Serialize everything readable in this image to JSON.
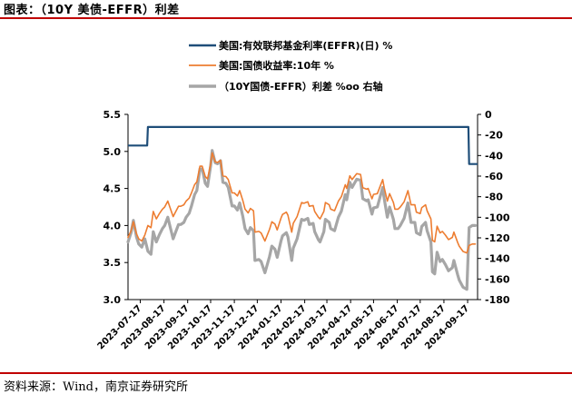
{
  "page": {
    "title": "图表：（10Y 美债-EFFR）利差",
    "source": "资料来源：Wind，南京证券研究所"
  },
  "colors": {
    "effr": "#1f4e79",
    "yield10y": "#ed7d31",
    "spread": "#a6a6a6",
    "rule": "#c00000"
  },
  "chart_data": {
    "type": "line",
    "legend_position": "top-center",
    "grid": false,
    "legend": [
      {
        "key": "effr",
        "label": "美国:有效联邦基金利率(EFFR)(日) %"
      },
      {
        "key": "yield10y",
        "label": "美国:国债收益率:10年 %"
      },
      {
        "key": "spread",
        "label": "（10Y国债-EFFR）利差 %oo 右轴"
      }
    ],
    "x_range": [
      "2023-07-01",
      "2024-09-30"
    ],
    "x_ticks": [
      "2023-07-17",
      "2023-08-17",
      "2023-09-17",
      "2023-10-17",
      "2023-11-17",
      "2023-12-17",
      "2024-01-17",
      "2024-02-17",
      "2024-03-17",
      "2024-04-17",
      "2024-05-17",
      "2024-06-17",
      "2024-07-17",
      "2024-08-17",
      "2024-09-17"
    ],
    "y_left": {
      "min": 3.0,
      "max": 5.5,
      "ticks": [
        "3.0",
        "3.5",
        "4.0",
        "4.5",
        "5.0",
        "5.5"
      ]
    },
    "y_right": {
      "min": -180,
      "max": 0,
      "ticks": [
        "0",
        "-20",
        "-40",
        "-60",
        "-80",
        "-100",
        "-120",
        "-140",
        "-160",
        "-180"
      ]
    },
    "series": [
      {
        "key": "effr",
        "axis": "left",
        "points": [
          [
            "2023-07-01",
            5.08
          ],
          [
            "2023-07-26",
            5.08
          ],
          [
            "2023-07-27",
            5.33
          ],
          [
            "2024-09-18",
            5.33
          ],
          [
            "2024-09-19",
            4.83
          ],
          [
            "2024-09-30",
            4.83
          ]
        ]
      },
      {
        "key": "yield10y",
        "axis": "left",
        "points": [
          [
            "2023-07-01",
            3.84
          ],
          [
            "2023-07-05",
            3.93
          ],
          [
            "2023-07-08",
            4.05
          ],
          [
            "2023-07-12",
            3.89
          ],
          [
            "2023-07-15",
            3.82
          ],
          [
            "2023-07-19",
            3.79
          ],
          [
            "2023-07-23",
            3.87
          ],
          [
            "2023-07-27",
            4.0
          ],
          [
            "2023-07-31",
            3.97
          ],
          [
            "2023-08-03",
            4.19
          ],
          [
            "2023-08-07",
            4.09
          ],
          [
            "2023-08-11",
            4.16
          ],
          [
            "2023-08-15",
            4.22
          ],
          [
            "2023-08-18",
            4.25
          ],
          [
            "2023-08-22",
            4.33
          ],
          [
            "2023-08-25",
            4.24
          ],
          [
            "2023-08-29",
            4.12
          ],
          [
            "2023-09-01",
            4.18
          ],
          [
            "2023-09-05",
            4.26
          ],
          [
            "2023-09-08",
            4.26
          ],
          [
            "2023-09-12",
            4.28
          ],
          [
            "2023-09-15",
            4.33
          ],
          [
            "2023-09-19",
            4.37
          ],
          [
            "2023-09-22",
            4.44
          ],
          [
            "2023-09-26",
            4.55
          ],
          [
            "2023-09-29",
            4.59
          ],
          [
            "2023-10-03",
            4.8
          ],
          [
            "2023-10-06",
            4.8
          ],
          [
            "2023-10-10",
            4.66
          ],
          [
            "2023-10-13",
            4.63
          ],
          [
            "2023-10-17",
            4.83
          ],
          [
            "2023-10-19",
            4.98
          ],
          [
            "2023-10-23",
            4.86
          ],
          [
            "2023-10-26",
            4.85
          ],
          [
            "2023-10-30",
            4.88
          ],
          [
            "2023-11-02",
            4.67
          ],
          [
            "2023-11-06",
            4.66
          ],
          [
            "2023-11-09",
            4.62
          ],
          [
            "2023-11-14",
            4.44
          ],
          [
            "2023-11-17",
            4.44
          ],
          [
            "2023-11-21",
            4.4
          ],
          [
            "2023-11-24",
            4.47
          ],
          [
            "2023-11-28",
            4.34
          ],
          [
            "2023-12-01",
            4.22
          ],
          [
            "2023-12-05",
            4.17
          ],
          [
            "2023-12-08",
            4.23
          ],
          [
            "2023-12-12",
            4.2
          ],
          [
            "2023-12-14",
            3.91
          ],
          [
            "2023-12-19",
            3.92
          ],
          [
            "2023-12-22",
            3.9
          ],
          [
            "2023-12-27",
            3.79
          ],
          [
            "2024-01-02",
            3.95
          ],
          [
            "2024-01-05",
            4.05
          ],
          [
            "2024-01-09",
            4.02
          ],
          [
            "2024-01-12",
            3.94
          ],
          [
            "2024-01-17",
            4.1
          ],
          [
            "2024-01-19",
            4.15
          ],
          [
            "2024-01-24",
            4.18
          ],
          [
            "2024-01-26",
            4.14
          ],
          [
            "2024-01-31",
            3.91
          ],
          [
            "2024-02-02",
            4.03
          ],
          [
            "2024-02-07",
            4.12
          ],
          [
            "2024-02-13",
            4.31
          ],
          [
            "2024-02-16",
            4.3
          ],
          [
            "2024-02-21",
            4.32
          ],
          [
            "2024-02-23",
            4.26
          ],
          [
            "2024-02-28",
            4.27
          ],
          [
            "2024-03-01",
            4.19
          ],
          [
            "2024-03-06",
            4.11
          ],
          [
            "2024-03-08",
            4.09
          ],
          [
            "2024-03-13",
            4.19
          ],
          [
            "2024-03-15",
            4.31
          ],
          [
            "2024-03-20",
            4.28
          ],
          [
            "2024-03-22",
            4.22
          ],
          [
            "2024-03-27",
            4.2
          ],
          [
            "2024-04-01",
            4.33
          ],
          [
            "2024-04-05",
            4.39
          ],
          [
            "2024-04-10",
            4.55
          ],
          [
            "2024-04-12",
            4.5
          ],
          [
            "2024-04-16",
            4.67
          ],
          [
            "2024-04-19",
            4.62
          ],
          [
            "2024-04-25",
            4.7
          ],
          [
            "2024-04-30",
            4.69
          ],
          [
            "2024-05-03",
            4.51
          ],
          [
            "2024-05-08",
            4.49
          ],
          [
            "2024-05-10",
            4.5
          ],
          [
            "2024-05-15",
            4.36
          ],
          [
            "2024-05-17",
            4.42
          ],
          [
            "2024-05-22",
            4.43
          ],
          [
            "2024-05-29",
            4.62
          ],
          [
            "2024-05-31",
            4.51
          ],
          [
            "2024-06-04",
            4.33
          ],
          [
            "2024-06-07",
            4.43
          ],
          [
            "2024-06-12",
            4.31
          ],
          [
            "2024-06-14",
            4.22
          ],
          [
            "2024-06-18",
            4.22
          ],
          [
            "2024-06-21",
            4.25
          ],
          [
            "2024-06-26",
            4.32
          ],
          [
            "2024-07-01",
            4.47
          ],
          [
            "2024-07-05",
            4.28
          ],
          [
            "2024-07-10",
            4.28
          ],
          [
            "2024-07-12",
            4.18
          ],
          [
            "2024-07-17",
            4.16
          ],
          [
            "2024-07-19",
            4.24
          ],
          [
            "2024-07-24",
            4.28
          ],
          [
            "2024-07-26",
            4.2
          ],
          [
            "2024-07-31",
            4.09
          ],
          [
            "2024-08-02",
            3.8
          ],
          [
            "2024-08-05",
            3.78
          ],
          [
            "2024-08-08",
            3.99
          ],
          [
            "2024-08-12",
            3.9
          ],
          [
            "2024-08-15",
            3.92
          ],
          [
            "2024-08-19",
            3.87
          ],
          [
            "2024-08-23",
            3.81
          ],
          [
            "2024-08-28",
            3.84
          ],
          [
            "2024-08-30",
            3.91
          ],
          [
            "2024-09-04",
            3.77
          ],
          [
            "2024-09-06",
            3.72
          ],
          [
            "2024-09-11",
            3.65
          ],
          [
            "2024-09-16",
            3.63
          ],
          [
            "2024-09-19",
            3.73
          ],
          [
            "2024-09-23",
            3.75
          ],
          [
            "2024-09-27",
            3.75
          ]
        ]
      },
      {
        "key": "spread",
        "axis": "right",
        "points": [
          [
            "2023-07-01",
            -124
          ],
          [
            "2023-07-05",
            -115
          ],
          [
            "2023-07-08",
            -103
          ],
          [
            "2023-07-12",
            -119
          ],
          [
            "2023-07-15",
            -126
          ],
          [
            "2023-07-19",
            -129
          ],
          [
            "2023-07-23",
            -121
          ],
          [
            "2023-07-27",
            -133
          ],
          [
            "2023-07-31",
            -136
          ],
          [
            "2023-08-03",
            -114
          ],
          [
            "2023-08-07",
            -124
          ],
          [
            "2023-08-11",
            -117
          ],
          [
            "2023-08-15",
            -111
          ],
          [
            "2023-08-18",
            -108
          ],
          [
            "2023-08-22",
            -100
          ],
          [
            "2023-08-25",
            -109
          ],
          [
            "2023-08-29",
            -121
          ],
          [
            "2023-09-01",
            -115
          ],
          [
            "2023-09-05",
            -107
          ],
          [
            "2023-09-08",
            -107
          ],
          [
            "2023-09-12",
            -105
          ],
          [
            "2023-09-15",
            -100
          ],
          [
            "2023-09-19",
            -96
          ],
          [
            "2023-09-22",
            -89
          ],
          [
            "2023-09-26",
            -78
          ],
          [
            "2023-09-29",
            -74
          ],
          [
            "2023-10-03",
            -53
          ],
          [
            "2023-10-06",
            -53
          ],
          [
            "2023-10-10",
            -67
          ],
          [
            "2023-10-13",
            -70
          ],
          [
            "2023-10-17",
            -50
          ],
          [
            "2023-10-19",
            -35
          ],
          [
            "2023-10-23",
            -47
          ],
          [
            "2023-10-26",
            -48
          ],
          [
            "2023-10-30",
            -45
          ],
          [
            "2023-11-02",
            -66
          ],
          [
            "2023-11-06",
            -67
          ],
          [
            "2023-11-09",
            -71
          ],
          [
            "2023-11-14",
            -89
          ],
          [
            "2023-11-17",
            -89
          ],
          [
            "2023-11-21",
            -93
          ],
          [
            "2023-11-24",
            -86
          ],
          [
            "2023-11-28",
            -99
          ],
          [
            "2023-12-01",
            -111
          ],
          [
            "2023-12-05",
            -116
          ],
          [
            "2023-12-08",
            -110
          ],
          [
            "2023-12-12",
            -113
          ],
          [
            "2023-12-14",
            -142
          ],
          [
            "2023-12-19",
            -141
          ],
          [
            "2023-12-22",
            -143
          ],
          [
            "2023-12-27",
            -154
          ],
          [
            "2024-01-02",
            -138
          ],
          [
            "2024-01-05",
            -128
          ],
          [
            "2024-01-09",
            -131
          ],
          [
            "2024-01-12",
            -139
          ],
          [
            "2024-01-17",
            -123
          ],
          [
            "2024-01-19",
            -118
          ],
          [
            "2024-01-24",
            -115
          ],
          [
            "2024-01-26",
            -119
          ],
          [
            "2024-01-31",
            -142
          ],
          [
            "2024-02-02",
            -130
          ],
          [
            "2024-02-07",
            -121
          ],
          [
            "2024-02-13",
            -102
          ],
          [
            "2024-02-16",
            -103
          ],
          [
            "2024-02-21",
            -101
          ],
          [
            "2024-02-23",
            -107
          ],
          [
            "2024-02-28",
            -106
          ],
          [
            "2024-03-01",
            -114
          ],
          [
            "2024-03-06",
            -122
          ],
          [
            "2024-03-08",
            -124
          ],
          [
            "2024-03-13",
            -114
          ],
          [
            "2024-03-15",
            -102
          ],
          [
            "2024-03-20",
            -105
          ],
          [
            "2024-03-22",
            -111
          ],
          [
            "2024-03-27",
            -113
          ],
          [
            "2024-04-01",
            -100
          ],
          [
            "2024-04-05",
            -94
          ],
          [
            "2024-04-10",
            -78
          ],
          [
            "2024-04-12",
            -83
          ],
          [
            "2024-04-16",
            -66
          ],
          [
            "2024-04-19",
            -71
          ],
          [
            "2024-04-25",
            -63
          ],
          [
            "2024-04-30",
            -64
          ],
          [
            "2024-05-03",
            -82
          ],
          [
            "2024-05-08",
            -84
          ],
          [
            "2024-05-10",
            -83
          ],
          [
            "2024-05-15",
            -97
          ],
          [
            "2024-05-17",
            -91
          ],
          [
            "2024-05-22",
            -90
          ],
          [
            "2024-05-29",
            -71
          ],
          [
            "2024-05-31",
            -82
          ],
          [
            "2024-06-04",
            -100
          ],
          [
            "2024-06-07",
            -90
          ],
          [
            "2024-06-12",
            -102
          ],
          [
            "2024-06-14",
            -111
          ],
          [
            "2024-06-18",
            -111
          ],
          [
            "2024-06-21",
            -108
          ],
          [
            "2024-06-26",
            -101
          ],
          [
            "2024-07-01",
            -86
          ],
          [
            "2024-07-05",
            -105
          ],
          [
            "2024-07-10",
            -105
          ],
          [
            "2024-07-12",
            -115
          ],
          [
            "2024-07-17",
            -117
          ],
          [
            "2024-07-19",
            -109
          ],
          [
            "2024-07-24",
            -105
          ],
          [
            "2024-07-26",
            -113
          ],
          [
            "2024-07-31",
            -124
          ],
          [
            "2024-08-02",
            -153
          ],
          [
            "2024-08-05",
            -155
          ],
          [
            "2024-08-08",
            -134
          ],
          [
            "2024-08-12",
            -143
          ],
          [
            "2024-08-15",
            -141
          ],
          [
            "2024-08-19",
            -146
          ],
          [
            "2024-08-23",
            -152
          ],
          [
            "2024-08-28",
            -149
          ],
          [
            "2024-08-30",
            -142
          ],
          [
            "2024-09-04",
            -156
          ],
          [
            "2024-09-06",
            -161
          ],
          [
            "2024-09-11",
            -168
          ],
          [
            "2024-09-16",
            -170
          ],
          [
            "2024-09-19",
            -110
          ],
          [
            "2024-09-23",
            -108
          ],
          [
            "2024-09-27",
            -108
          ]
        ]
      }
    ]
  }
}
